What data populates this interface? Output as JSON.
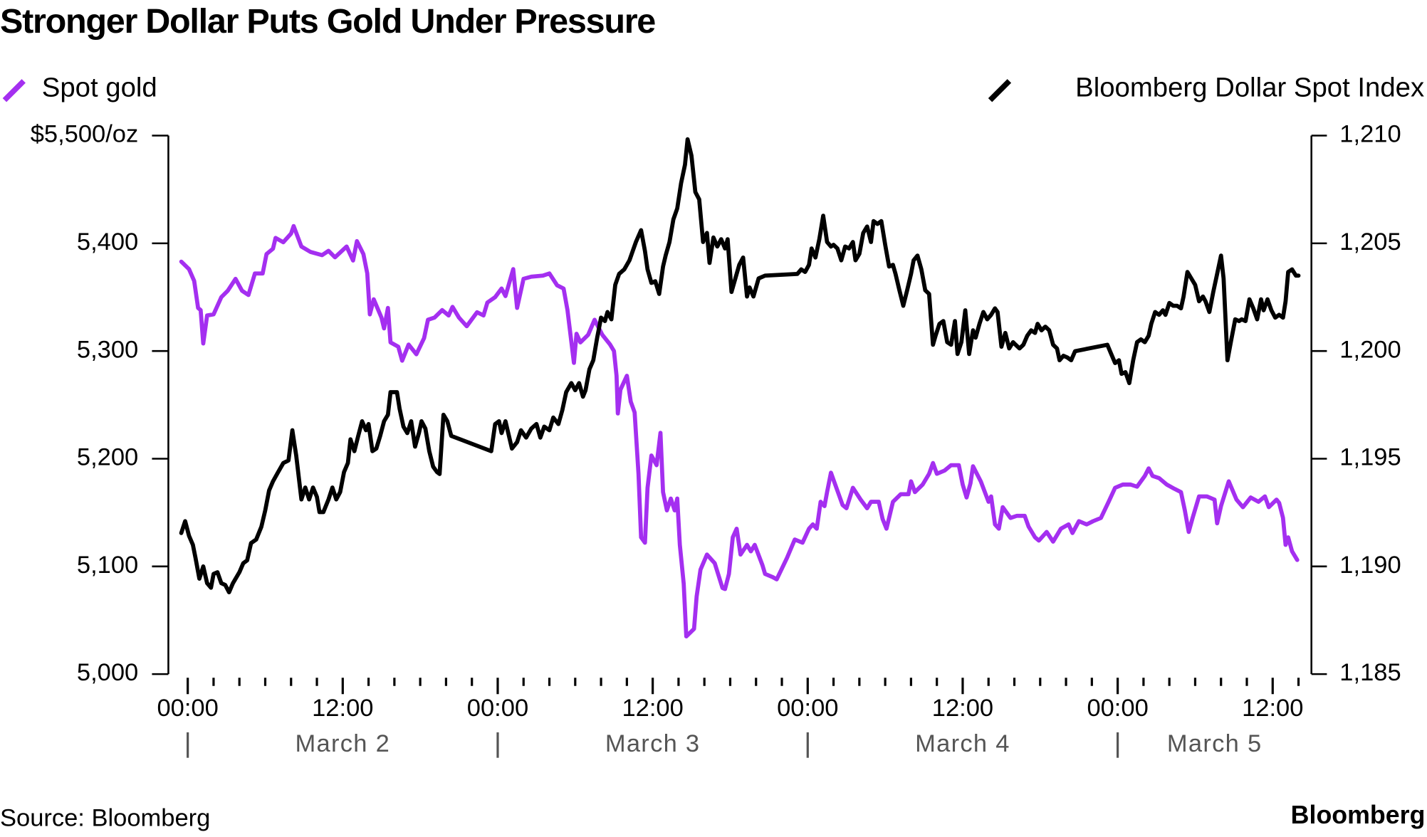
{
  "chart_data": {
    "type": "line",
    "title": "Stronger Dollar Puts Gold Under Pressure",
    "source": "Source: Bloomberg",
    "logo": "Bloomberg",
    "xlim": [
      -1.5,
      87
    ],
    "xticks": [
      {
        "value": 0,
        "label": "00:00"
      },
      {
        "value": 12,
        "label": "12:00"
      },
      {
        "value": 24,
        "label": "00:00"
      },
      {
        "value": 36,
        "label": "12:00"
      },
      {
        "value": 48,
        "label": "00:00"
      },
      {
        "value": 60,
        "label": "12:00"
      },
      {
        "value": 72,
        "label": "00:00"
      },
      {
        "value": 84,
        "label": "12:00"
      }
    ],
    "xminorticks": [
      2,
      4,
      6,
      8,
      10,
      14,
      16,
      18,
      20,
      22,
      26,
      28,
      30,
      32,
      34,
      38,
      40,
      42,
      44,
      46,
      50,
      52,
      54,
      56,
      58,
      62,
      64,
      66,
      68,
      70,
      74,
      76,
      78,
      80,
      82,
      86
    ],
    "day_ticks": [
      0,
      24,
      48,
      72
    ],
    "day_labels": [
      "March 2",
      "March 3",
      "March 4",
      "March 5"
    ],
    "ylim": [
      5000,
      5500
    ],
    "yticks": [
      {
        "value": 5000,
        "label": "5,000"
      },
      {
        "value": 5100,
        "label": "5,100"
      },
      {
        "value": 5200,
        "label": "5,200"
      },
      {
        "value": 5300,
        "label": "5,300"
      },
      {
        "value": 5400,
        "label": "5,400"
      },
      {
        "value": 5500,
        "label": "$5,500/oz"
      }
    ],
    "y2lim": [
      1185,
      1210
    ],
    "y2ticks": [
      {
        "value": 1185,
        "label": "1,185"
      },
      {
        "value": 1190,
        "label": "1,190"
      },
      {
        "value": 1195,
        "label": "1,195"
      },
      {
        "value": 1200,
        "label": "1,200"
      },
      {
        "value": 1205,
        "label": "1,205"
      },
      {
        "value": 1210,
        "label": "1,210"
      }
    ],
    "grid": false,
    "series": [
      {
        "name": "Spot gold",
        "color": "#a42ff0",
        "axis": "y",
        "x": [
          -0.5,
          0.1,
          0.5,
          0.8,
          1.0,
          1.2,
          1.5,
          2.0,
          2.6,
          3.1,
          3.7,
          4.2,
          4.7,
          5.2,
          5.8,
          6.1,
          6.6,
          6.8,
          7.4,
          8.0,
          8.2,
          8.8,
          9.5,
          10.4,
          10.9,
          11.4,
          12.3,
          12.8,
          13.1,
          13.6,
          13.9,
          14.1,
          14.4,
          15.0,
          15.2,
          15.5,
          15.7,
          16.3,
          16.6,
          17.1,
          17.7,
          18.3,
          18.6,
          19.1,
          19.7,
          20.2,
          20.5,
          21.0,
          21.6,
          22.4,
          22.9,
          23.2,
          23.8,
          24.3,
          24.6,
          25.2,
          25.5,
          26.0,
          26.6,
          27.5,
          28.0,
          28.6,
          29.1,
          29.4,
          29.9,
          30.1,
          30.4,
          31.0,
          31.5,
          32.1,
          32.7,
          33.0,
          33.2,
          33.3,
          33.5,
          34.0,
          34.3,
          34.6,
          34.9,
          35.1,
          35.4,
          35.6,
          35.9,
          36.3,
          36.6,
          36.8,
          37.1,
          37.4,
          37.7,
          37.9,
          38.1,
          38.4,
          38.6,
          39.2,
          39.4,
          39.7,
          40.2,
          40.8,
          41.4,
          41.6,
          41.9,
          42.2,
          42.5,
          42.8,
          43.3,
          43.6,
          43.9,
          44.5,
          44.7,
          45.3,
          45.6,
          46.4,
          47.0,
          47.6,
          48.1,
          48.4,
          48.7,
          49.0,
          49.3,
          49.5,
          49.8,
          50.1,
          50.7,
          51.0,
          51.5,
          52.1,
          52.6,
          52.9,
          53.5,
          53.8,
          54.1,
          54.6,
          55.2,
          55.8,
          56.0,
          56.3,
          56.9,
          57.4,
          57.7,
          58.0,
          58.6,
          59.1,
          59.7,
          60.0,
          60.3,
          60.6,
          60.8,
          61.4,
          62.0,
          62.2,
          62.5,
          62.8,
          63.1,
          63.7,
          64.2,
          64.8,
          65.1,
          65.6,
          65.9,
          66.5,
          67.0,
          67.6,
          68.2,
          68.5,
          69.0,
          69.6,
          70.1,
          70.7,
          71.3,
          71.8,
          72.4,
          73.0,
          73.5,
          74.1,
          74.4,
          74.7,
          75.2,
          75.8,
          76.4,
          76.9,
          77.2,
          77.5,
          77.8,
          78.3,
          78.9,
          79.5,
          79.7,
          80.0,
          80.6,
          81.2,
          81.7,
          82.3,
          82.9,
          83.4,
          83.7,
          84.3,
          84.5,
          84.8,
          85.0,
          85.2,
          85.5,
          85.9
        ],
        "values": [
          5383,
          5376,
          5365,
          5340,
          5338,
          5307,
          5333,
          5334,
          5350,
          5356,
          5367,
          5356,
          5352,
          5372,
          5372,
          5390,
          5395,
          5405,
          5401,
          5409,
          5416,
          5397,
          5392,
          5389,
          5393,
          5387,
          5397,
          5384,
          5402,
          5390,
          5372,
          5334,
          5348,
          5331,
          5321,
          5340,
          5308,
          5304,
          5291,
          5306,
          5297,
          5312,
          5329,
          5331,
          5338,
          5333,
          5341,
          5331,
          5323,
          5336,
          5333,
          5345,
          5350,
          5358,
          5351,
          5376,
          5340,
          5367,
          5369,
          5370,
          5372,
          5361,
          5358,
          5338,
          5289,
          5316,
          5308,
          5315,
          5329,
          5315,
          5306,
          5300,
          5277,
          5242,
          5264,
          5277,
          5253,
          5243,
          5186,
          5127,
          5122,
          5173,
          5203,
          5194,
          5224,
          5169,
          5152,
          5163,
          5152,
          5163,
          5120,
          5084,
          5035,
          5042,
          5072,
          5097,
          5111,
          5103,
          5080,
          5079,
          5093,
          5127,
          5135,
          5111,
          5120,
          5114,
          5120,
          5101,
          5093,
          5090,
          5088,
          5108,
          5125,
          5122,
          5135,
          5139,
          5135,
          5160,
          5156,
          5169,
          5187,
          5177,
          5157,
          5154,
          5173,
          5162,
          5154,
          5160,
          5160,
          5144,
          5135,
          5160,
          5167,
          5167,
          5179,
          5169,
          5176,
          5186,
          5196,
          5186,
          5189,
          5194,
          5194,
          5176,
          5164,
          5177,
          5193,
          5179,
          5160,
          5165,
          5139,
          5135,
          5155,
          5145,
          5147,
          5147,
          5137,
          5127,
          5124,
          5132,
          5123,
          5135,
          5139,
          5131,
          5142,
          5139,
          5142,
          5145,
          5160,
          5173,
          5176,
          5176,
          5174,
          5184,
          5191,
          5184,
          5182,
          5176,
          5172,
          5169,
          5152,
          5132,
          5145,
          5165,
          5165,
          5162,
          5140,
          5156,
          5179,
          5162,
          5155,
          5164,
          5160,
          5165,
          5155,
          5162,
          5159,
          5145,
          5120,
          5127,
          5114,
          5106
        ]
      },
      {
        "name": "Bloomberg Dollar Spot Index",
        "color": "#000000",
        "axis": "y2",
        "x": [
          -0.5,
          -0.2,
          0.1,
          0.4,
          0.6,
          0.9,
          1.2,
          1.5,
          1.8,
          2.0,
          2.3,
          2.6,
          2.9,
          3.2,
          3.5,
          4.0,
          4.3,
          4.6,
          4.9,
          5.3,
          5.7,
          6.0,
          6.3,
          6.6,
          7.0,
          7.4,
          7.8,
          8.1,
          8.4,
          8.8,
          9.1,
          9.4,
          9.7,
          10.0,
          10.2,
          10.5,
          10.9,
          11.2,
          11.5,
          11.8,
          12.1,
          12.4,
          12.6,
          12.9,
          13.2,
          13.5,
          13.8,
          14.0,
          14.3,
          14.6,
          14.9,
          15.2,
          15.5,
          15.7,
          16.2,
          16.4,
          16.7,
          17.0,
          17.3,
          17.6,
          17.9,
          18.1,
          18.4,
          18.7,
          19.0,
          19.3,
          19.5,
          19.8,
          20.1,
          20.4,
          23.5,
          23.8,
          24.1,
          24.3,
          24.6,
          25.1,
          25.5,
          25.8,
          26.2,
          26.6,
          27.0,
          27.3,
          27.6,
          28.0,
          28.3,
          28.7,
          29.0,
          29.3,
          29.7,
          30.0,
          30.3,
          30.6,
          30.8,
          31.1,
          31.4,
          31.7,
          32.0,
          32.3,
          32.5,
          32.8,
          33.1,
          33.4,
          33.8,
          34.2,
          34.7,
          35.1,
          35.4,
          35.6,
          35.9,
          36.2,
          36.5,
          36.8,
          37.0,
          37.3,
          37.6,
          37.9,
          38.2,
          38.5,
          38.7,
          39.0,
          39.3,
          39.6,
          39.9,
          40.2,
          40.4,
          40.7,
          41.0,
          41.3,
          41.6,
          41.8,
          42.1,
          42.4,
          42.7,
          43.0,
          43.3,
          43.5,
          43.8,
          44.2,
          44.7,
          47.2,
          47.5,
          47.8,
          48.1,
          48.3,
          48.6,
          48.9,
          49.2,
          49.5,
          49.8,
          50.0,
          50.3,
          50.6,
          50.9,
          51.2,
          51.5,
          51.7,
          52.0,
          52.3,
          52.6,
          52.9,
          53.1,
          53.4,
          53.7,
          54.0,
          54.3,
          54.6,
          54.8,
          55.1,
          55.4,
          55.7,
          56.0,
          56.2,
          56.5,
          56.8,
          57.1,
          57.4,
          57.7,
          57.9,
          58.2,
          58.5,
          58.8,
          59.1,
          59.4,
          59.6,
          59.9,
          60.2,
          60.5,
          60.8,
          61.0,
          61.3,
          61.6,
          61.9,
          62.2,
          62.5,
          62.7,
          63.0,
          63.3,
          63.6,
          63.9,
          64.1,
          64.4,
          64.7,
          65.0,
          65.3,
          65.6,
          65.8,
          66.1,
          66.4,
          66.7,
          67.0,
          67.3,
          67.5,
          67.8,
          68.1,
          68.4,
          68.7,
          71.2,
          71.5,
          71.8,
          72.1,
          72.3,
          72.6,
          72.9,
          73.2,
          73.5,
          73.8,
          74.1,
          74.4,
          74.6,
          74.9,
          75.2,
          75.5,
          75.7,
          76.0,
          76.3,
          76.6,
          76.9,
          77.1,
          77.4,
          77.7,
          78.0,
          78.3,
          78.6,
          78.8,
          79.1,
          79.4,
          79.7,
          80.0,
          80.2,
          80.5,
          80.8,
          81.1,
          81.4,
          81.6,
          81.9,
          82.2,
          82.5,
          82.8,
          83.1,
          83.3,
          83.6,
          83.9,
          84.2,
          84.5,
          84.8,
          85.0,
          85.2,
          85.5,
          85.8,
          86.0
        ],
        "values": [
          1191.55,
          1192.1,
          1191.42,
          1191.0,
          1190.4,
          1189.43,
          1190.0,
          1189.22,
          1189.01,
          1189.65,
          1189.73,
          1189.22,
          1189.14,
          1188.8,
          1189.22,
          1189.73,
          1190.15,
          1190.28,
          1191.08,
          1191.25,
          1191.84,
          1192.6,
          1193.53,
          1193.95,
          1194.38,
          1194.8,
          1194.92,
          1196.32,
          1195.14,
          1193.11,
          1193.66,
          1193.11,
          1193.66,
          1193.23,
          1192.52,
          1192.52,
          1193.11,
          1193.66,
          1193.11,
          1193.45,
          1194.38,
          1194.8,
          1195.9,
          1195.35,
          1196.06,
          1196.74,
          1196.32,
          1196.61,
          1195.35,
          1195.47,
          1196.06,
          1196.74,
          1197.04,
          1198.09,
          1198.09,
          1197.33,
          1196.49,
          1196.19,
          1196.74,
          1195.56,
          1196.19,
          1196.74,
          1196.4,
          1195.35,
          1194.63,
          1194.38,
          1194.29,
          1197.04,
          1196.74,
          1196.06,
          1195.35,
          1196.61,
          1196.74,
          1196.19,
          1196.74,
          1195.47,
          1195.77,
          1196.32,
          1195.98,
          1196.4,
          1196.61,
          1195.98,
          1196.49,
          1196.32,
          1196.91,
          1196.61,
          1197.25,
          1198.09,
          1198.51,
          1198.18,
          1198.51,
          1197.88,
          1198.18,
          1199.15,
          1199.57,
          1200.62,
          1201.55,
          1201.39,
          1201.81,
          1201.47,
          1203.07,
          1203.58,
          1203.79,
          1204.21,
          1205.06,
          1205.61,
          1204.64,
          1203.79,
          1203.16,
          1203.24,
          1202.65,
          1203.92,
          1204.43,
          1205.06,
          1206.11,
          1206.62,
          1207.8,
          1208.65,
          1209.83,
          1209.07,
          1207.38,
          1207.04,
          1205.06,
          1205.48,
          1204.09,
          1205.27,
          1204.85,
          1205.19,
          1204.76,
          1205.19,
          1202.74,
          1203.37,
          1204.0,
          1204.34,
          1202.53,
          1202.95,
          1202.53,
          1203.37,
          1203.5,
          1203.58,
          1203.79,
          1203.67,
          1204.0,
          1204.76,
          1204.34,
          1205.19,
          1206.28,
          1205.06,
          1204.85,
          1204.93,
          1204.76,
          1204.21,
          1204.85,
          1204.76,
          1205.06,
          1204.21,
          1204.51,
          1205.48,
          1205.78,
          1205.06,
          1206.03,
          1205.9,
          1206.03,
          1204.93,
          1203.92,
          1204.0,
          1203.58,
          1202.82,
          1202.1,
          1202.82,
          1203.58,
          1204.21,
          1204.43,
          1203.79,
          1202.82,
          1202.65,
          1200.29,
          1200.71,
          1201.26,
          1201.39,
          1200.41,
          1200.29,
          1201.39,
          1199.86,
          1200.41,
          1201.89,
          1199.86,
          1200.96,
          1200.62,
          1201.26,
          1201.81,
          1201.47,
          1201.68,
          1201.98,
          1201.81,
          1200.2,
          1200.84,
          1200.12,
          1200.41,
          1200.29,
          1200.12,
          1200.29,
          1200.71,
          1200.96,
          1200.84,
          1201.26,
          1200.96,
          1201.13,
          1200.96,
          1200.29,
          1200.12,
          1199.57,
          1199.78,
          1199.7,
          1199.57,
          1199.99,
          1200.29,
          1199.86,
          1199.44,
          1199.57,
          1198.94,
          1199.02,
          1198.51,
          1199.57,
          1200.41,
          1200.54,
          1200.41,
          1200.71,
          1201.26,
          1201.81,
          1201.68,
          1201.89,
          1201.68,
          1202.23,
          1202.1,
          1202.1,
          1201.98,
          1202.53,
          1203.67,
          1203.37,
          1203.07,
          1202.31,
          1202.53,
          1202.31,
          1201.81,
          1202.74,
          1203.58,
          1204.43,
          1203.37,
          1199.57,
          1200.54,
          1201.47,
          1201.39,
          1201.47,
          1201.39,
          1202.4,
          1201.98,
          1201.47,
          1202.4,
          1201.89,
          1202.4,
          1201.89,
          1201.55,
          1201.68,
          1201.55,
          1202.31,
          1203.67,
          1203.79,
          1203.5,
          1203.5
        ]
      }
    ]
  }
}
